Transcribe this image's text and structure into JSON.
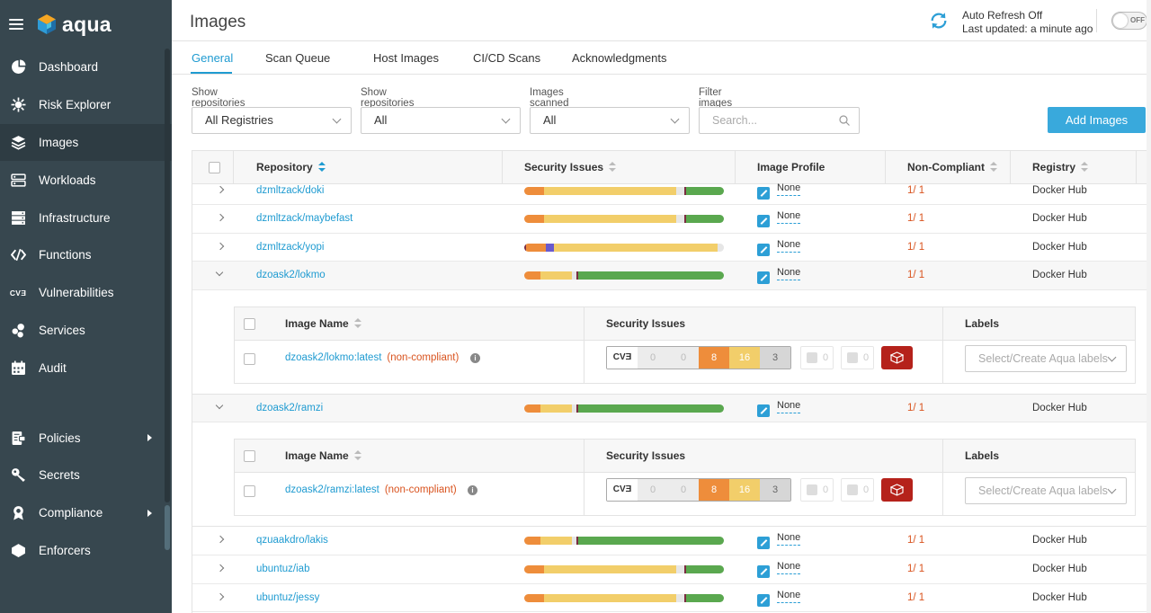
{
  "app": {
    "logo": "aqua"
  },
  "sidebar": {
    "items": [
      {
        "label": "Dashboard",
        "icon": "dashboard-icon"
      },
      {
        "label": "Risk Explorer",
        "icon": "risk-explorer-icon"
      },
      {
        "label": "Images",
        "icon": "images-icon",
        "active": true
      },
      {
        "label": "Workloads",
        "icon": "workloads-icon"
      },
      {
        "label": "Infrastructure",
        "icon": "infrastructure-icon"
      },
      {
        "label": "Functions",
        "icon": "functions-icon"
      },
      {
        "label": "Vulnerabilities",
        "icon": "cve-icon"
      },
      {
        "label": "Services",
        "icon": "services-icon"
      },
      {
        "label": "Audit",
        "icon": "audit-icon"
      }
    ],
    "lower_items": [
      {
        "label": "Policies",
        "icon": "policies-icon",
        "has_submenu": true
      },
      {
        "label": "Secrets",
        "icon": "secrets-icon"
      },
      {
        "label": "Compliance",
        "icon": "compliance-icon",
        "has_submenu": true
      },
      {
        "label": "Enforcers",
        "icon": "enforcers-icon"
      }
    ],
    "cve_icon_text": "CVƎ"
  },
  "header": {
    "title": "Images",
    "auto_refresh": "Auto Refresh Off",
    "last_updated": "Last updated: a minute ago",
    "toggle_text": "OFF"
  },
  "tabs": [
    "General",
    "Scan Queue",
    "Host Images",
    "CI/CD Scans",
    "Acknowledgments"
  ],
  "filters": {
    "repos_from_label": "Show repositories from:",
    "repos_from_value": "All Registries",
    "repos_with_label": "Show repositories with:",
    "repos_with_value": "All",
    "scanned_label": "Images scanned in the last:",
    "scanned_value": "All",
    "filter_label": "Filter images by name:",
    "filter_placeholder": "Search..."
  },
  "add_images_label": "Add Images",
  "table": {
    "columns": [
      "Repository",
      "Security Issues",
      "Image Profile",
      "Non-Compliant",
      "Registry"
    ],
    "rows": [
      {
        "repo": "dzmltzack/doki",
        "profile": "None",
        "noncompliant": "1/ 1",
        "registry": "Docker Hub",
        "bar": [
          [
            "#ee8d3b",
            10
          ],
          [
            "#f2ce6a",
            66
          ],
          [
            "#e6e6e6",
            4
          ],
          [
            "#7b2d40",
            1
          ],
          [
            "#5aa84f",
            19
          ]
        ]
      },
      {
        "repo": "dzmltzack/maybefast",
        "profile": "None",
        "noncompliant": "1/ 1",
        "registry": "Docker Hub",
        "bar": [
          [
            "#ee8d3b",
            10
          ],
          [
            "#f2ce6a",
            66
          ],
          [
            "#e6e6e6",
            4
          ],
          [
            "#7b2d40",
            1
          ],
          [
            "#5aa84f",
            19
          ]
        ]
      },
      {
        "repo": "dzmltzack/yopi",
        "profile": "None",
        "noncompliant": "1/ 1",
        "registry": "Docker Hub",
        "bar": [
          [
            "#7b2d40",
            1
          ],
          [
            "#ee8d3b",
            10
          ],
          [
            "#6a5acd",
            4
          ],
          [
            "#f2ce6a",
            82
          ],
          [
            "#e6e6e6",
            3
          ]
        ]
      },
      {
        "repo": "dzoask2/lokmo",
        "profile": "None",
        "noncompliant": "1/ 1",
        "registry": "Docker Hub",
        "expanded": true,
        "bar": [
          [
            "#ee8d3b",
            8
          ],
          [
            "#f2ce6a",
            16
          ],
          [
            "#e6e6e6",
            2
          ],
          [
            "#7b2d40",
            1
          ],
          [
            "#5aa84f",
            73
          ]
        ],
        "sub": {
          "image": "dzoask2/lokmo:latest",
          "status": "(non-compliant)",
          "cve": [
            "0",
            "0",
            "8",
            "16",
            "3"
          ],
          "badge1": "0",
          "badge2": "0",
          "labels_placeholder": "Select/Create Aqua labels"
        }
      },
      {
        "repo": "dzoask2/ramzi",
        "profile": "None",
        "noncompliant": "1/ 1",
        "registry": "Docker Hub",
        "expanded": true,
        "bar": [
          [
            "#ee8d3b",
            8
          ],
          [
            "#f2ce6a",
            16
          ],
          [
            "#e6e6e6",
            2
          ],
          [
            "#7b2d40",
            1
          ],
          [
            "#5aa84f",
            73
          ]
        ],
        "sub": {
          "image": "dzoask2/ramzi:latest",
          "status": "(non-compliant)",
          "cve": [
            "0",
            "0",
            "8",
            "16",
            "3"
          ],
          "badge1": "0",
          "badge2": "0",
          "labels_placeholder": "Select/Create Aqua labels"
        }
      },
      {
        "repo": "qzuaakdro/lakis",
        "profile": "None",
        "noncompliant": "1/ 1",
        "registry": "Docker Hub",
        "bar": [
          [
            "#ee8d3b",
            8
          ],
          [
            "#f2ce6a",
            16
          ],
          [
            "#e6e6e6",
            2
          ],
          [
            "#7b2d40",
            1
          ],
          [
            "#5aa84f",
            73
          ]
        ]
      },
      {
        "repo": "ubuntuz/iab",
        "profile": "None",
        "noncompliant": "1/ 1",
        "registry": "Docker Hub",
        "bar": [
          [
            "#ee8d3b",
            10
          ],
          [
            "#f2ce6a",
            66
          ],
          [
            "#e6e6e6",
            4
          ],
          [
            "#7b2d40",
            1
          ],
          [
            "#5aa84f",
            19
          ]
        ]
      },
      {
        "repo": "ubuntuz/jessy",
        "profile": "None",
        "noncompliant": "1/ 1",
        "registry": "Docker Hub",
        "bar": [
          [
            "#ee8d3b",
            10
          ],
          [
            "#f2ce6a",
            66
          ],
          [
            "#e6e6e6",
            4
          ],
          [
            "#7b2d40",
            1
          ],
          [
            "#5aa84f",
            19
          ]
        ]
      }
    ],
    "sub_columns": [
      "Image Name",
      "Security Issues",
      "Labels"
    ]
  },
  "colors": {
    "accent": "#1f9bd1",
    "sidebar": "#37474f",
    "critical": "#b5221b",
    "high": "#ee8d3b",
    "medium": "#f2ce6a",
    "low": "#d9d9d9"
  }
}
